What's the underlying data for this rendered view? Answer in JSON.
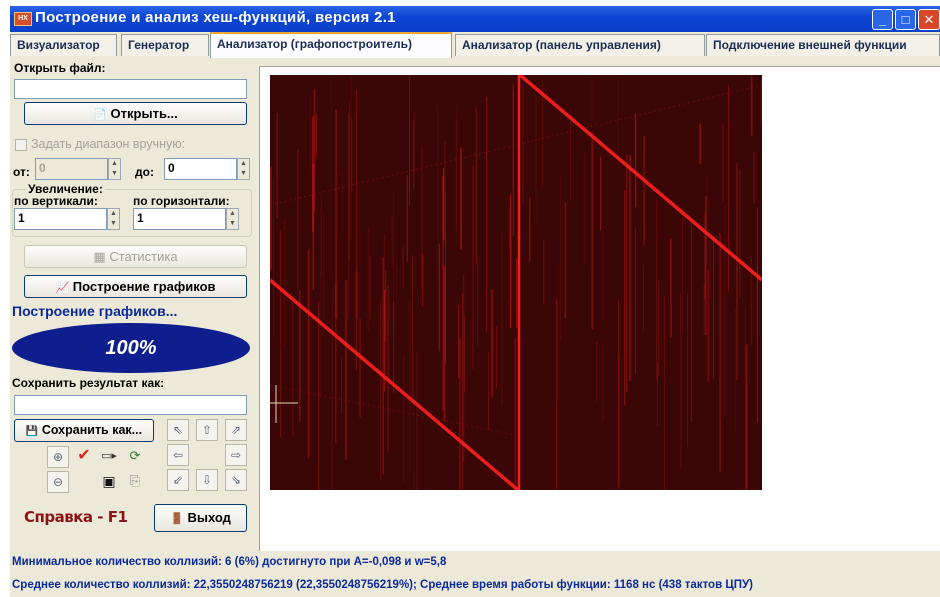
{
  "window": {
    "title": "Построение и анализ хеш-функций, версия 2.1",
    "minimize": "_",
    "maximize": "□",
    "close": "✕"
  },
  "tabs": [
    {
      "label": "Визуализатор"
    },
    {
      "label": "Генератор"
    },
    {
      "label": "Анализатор (графопостроитель)",
      "active": true
    },
    {
      "label": "Анализатор (панель управления)"
    },
    {
      "label": "Подключение внешней функции"
    }
  ],
  "left_panel": {
    "open_file_label": "Открыть файл:",
    "open_file_value": "",
    "open_button": "Открыть...",
    "manual_range_label": "Задать диапазон вручную:",
    "from_label": "от:",
    "from_value": "0",
    "to_label": "до:",
    "to_value": "0",
    "zoom_title": "Увеличение:",
    "vertical_label": "по вертикали:",
    "vertical_value": "1",
    "horizontal_label": "по горизонтали:",
    "horizontal_value": "1",
    "stats_button": "Статистика",
    "plot_button": "Построение графиков",
    "progress_text": "Построение графиков...",
    "progress_percent": "100%",
    "save_label": "Сохранить результат как:",
    "save_value": "",
    "save_button": "Сохранить как...",
    "help_text": "Справка - F1",
    "exit_button": "Выход"
  },
  "icons": {
    "open": "📄",
    "stats": "▦",
    "plot": "📈",
    "save": "💾",
    "exit": "🚪",
    "zoom_in": "⊕",
    "zoom_out": "⊖",
    "check": "✔",
    "arrow_ul": "⇖",
    "arrow_u": "⇧",
    "arrow_ur": "⇗",
    "arrow_l": "⇦",
    "arrow_r": "⇨",
    "arrow_dl": "⇙",
    "arrow_d": "⇩",
    "arrow_dr": "⇘"
  },
  "plot": {
    "background": "#3a0606",
    "line_color": "#ff2020"
  },
  "status": {
    "line1": "Минимальное количество коллизий: 6 (6%) достигнуто при A=-0,098 и w=5,8",
    "line2": "Среднее количество коллизий: 22,3550248756219 (22,3550248756219%); Среднее время работы функции: 1168 нс (438 тактов ЦПУ)"
  },
  "colors": {
    "titlebar": "#0d46d4",
    "panel": "#ece9d8",
    "progress_ellipse": "#0e1e8e",
    "help_text": "#8b1316",
    "status_text": "#0a2a9e"
  }
}
